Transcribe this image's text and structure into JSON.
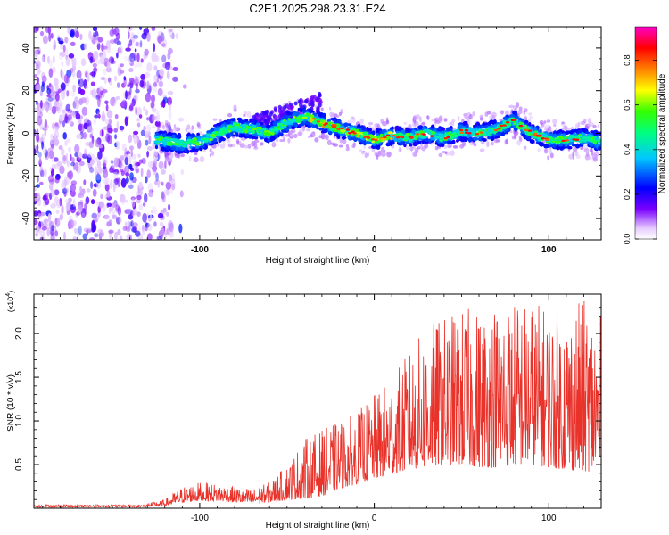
{
  "title": "C2E1.2025.298.23.31.E24",
  "chart_data": [
    {
      "type": "heatmap",
      "xlabel": "Height of straight line (km)",
      "ylabel": "Frequency (Hz)",
      "xlim": [
        -195,
        130
      ],
      "ylim": [
        -50,
        50
      ],
      "xticks": [
        -100,
        0,
        100
      ],
      "xtick_labels": [
        "-100",
        "0",
        "100"
      ],
      "yticks": [
        -40,
        -20,
        0,
        20,
        40
      ],
      "ytick_labels": [
        "-40",
        "-20",
        "0",
        "20",
        "40"
      ],
      "colorbar": {
        "label": "Normalized spectral amplitude",
        "range": [
          0,
          0.95
        ],
        "ticks": [
          0,
          0.2,
          0.4,
          0.6,
          0.8
        ],
        "tick_labels": [
          "0.0",
          "0.2",
          "0.4",
          "0.6",
          "0.8"
        ]
      },
      "ridge": {
        "x": [
          -125,
          -110,
          -100,
          -90,
          -80,
          -70,
          -60,
          -50,
          -40,
          -30,
          -20,
          -10,
          0,
          10,
          20,
          30,
          40,
          50,
          60,
          70,
          80,
          90,
          100,
          110,
          120,
          130
        ],
        "freq": [
          -3,
          -5,
          -4,
          0,
          3,
          2,
          0,
          5,
          8,
          5,
          2,
          0,
          -3,
          -1,
          -2,
          0,
          -2,
          1,
          0,
          2,
          6,
          0,
          -3,
          -3,
          -2,
          -4
        ]
      },
      "noise_region_x": [
        -195,
        -115
      ]
    },
    {
      "type": "line",
      "xlabel": "Height of straight line (km)",
      "ylabel": "SNR (10 * v/v)",
      "y_multiplier_label": "(x10",
      "y_multiplier_exp": "4",
      "y_multiplier_close": ")",
      "xlim": [
        -195,
        130
      ],
      "ylim": [
        0,
        2.45
      ],
      "xticks": [
        -100,
        0,
        100
      ],
      "xtick_labels": [
        "-100",
        "0",
        "100"
      ],
      "yticks": [
        0.5,
        1.0,
        1.5,
        2.0
      ],
      "ytick_labels": [
        "0.5",
        "1.0",
        "1.5",
        "2.0"
      ],
      "color": "#e8322a",
      "envelope": {
        "x": [
          -195,
          -130,
          -120,
          -110,
          -100,
          -90,
          -80,
          -70,
          -60,
          -50,
          -40,
          -30,
          -20,
          -10,
          0,
          10,
          20,
          30,
          40,
          50,
          60,
          70,
          80,
          90,
          100,
          110,
          120,
          130
        ],
        "base": [
          0.02,
          0.03,
          0.05,
          0.12,
          0.15,
          0.15,
          0.12,
          0.1,
          0.12,
          0.18,
          0.2,
          0.25,
          0.4,
          0.5,
          0.6,
          0.7,
          0.8,
          0.85,
          0.9,
          0.9,
          0.85,
          0.85,
          0.9,
          0.9,
          0.85,
          0.8,
          0.75,
          0.8
        ],
        "peak": [
          0.04,
          0.06,
          0.1,
          0.25,
          0.3,
          0.28,
          0.25,
          0.22,
          0.3,
          0.5,
          0.8,
          0.9,
          1.0,
          1.1,
          1.3,
          1.5,
          1.8,
          2.1,
          2.2,
          2.3,
          2.3,
          2.4,
          2.4,
          2.4,
          2.3,
          2.3,
          2.4,
          2.2
        ]
      }
    }
  ]
}
